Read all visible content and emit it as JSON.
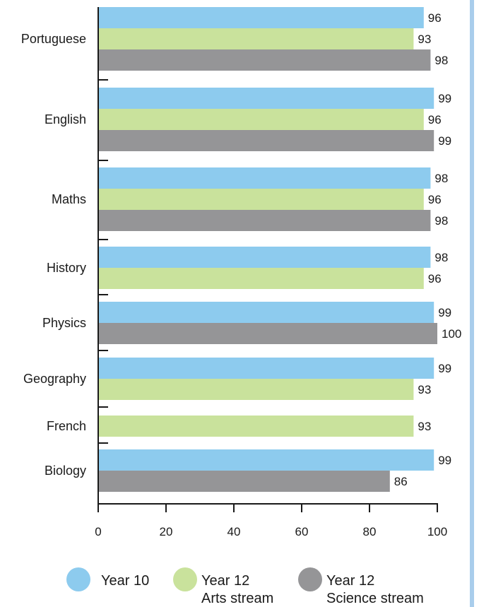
{
  "chart_data": {
    "type": "bar",
    "orientation": "horizontal",
    "title": "",
    "xlabel": "",
    "ylabel": "",
    "xlim": [
      0,
      100
    ],
    "x_ticks": [
      0,
      20,
      40,
      60,
      80,
      100
    ],
    "grid": false,
    "legend_position": "bottom",
    "colors": {
      "year10": "#8dcbee",
      "arts": "#c9e29c",
      "science": "#959597"
    },
    "series": [
      {
        "key": "year10",
        "name": [
          "Year 10"
        ]
      },
      {
        "key": "arts",
        "name": [
          "Year 12",
          "Arts stream"
        ]
      },
      {
        "key": "science",
        "name": [
          "Year 12",
          "Science stream"
        ]
      }
    ],
    "categories": [
      {
        "name": "Portuguese",
        "values": {
          "year10": 96,
          "arts": 93,
          "science": 98
        }
      },
      {
        "name": "English",
        "values": {
          "year10": 99,
          "arts": 96,
          "science": 99
        }
      },
      {
        "name": "Maths",
        "values": {
          "year10": 98,
          "arts": 96,
          "science": 98
        }
      },
      {
        "name": "History",
        "values": {
          "year10": 98,
          "arts": 96,
          "science": null
        }
      },
      {
        "name": "Physics",
        "values": {
          "year10": 99,
          "arts": null,
          "science": 100
        }
      },
      {
        "name": "Geography",
        "values": {
          "year10": 99,
          "arts": 93,
          "science": null
        }
      },
      {
        "name": "French",
        "values": {
          "year10": null,
          "arts": 93,
          "science": null
        }
      },
      {
        "name": "Biology",
        "values": {
          "year10": 99,
          "arts": null,
          "science": 86
        }
      }
    ]
  }
}
